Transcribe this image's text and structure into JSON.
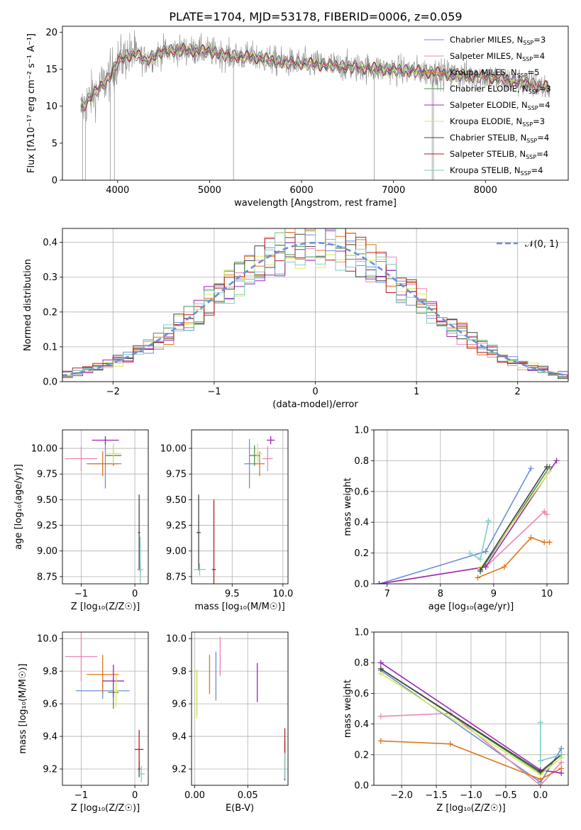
{
  "title": "PLATE=1704, MJD=53178, FIBERID=0006, z=0.059",
  "colors": {
    "Chabrier MILES": "#6a8fd8",
    "Salpeter MILES": "#e589b4",
    "Kroupa MILES": "#e0761a",
    "Chabrier ELODIE": "#4f8f4f",
    "Salpeter ELODIE": "#9b27b0",
    "Kroupa ELODIE": "#d7ec55",
    "Chabrier STELIB": "#444444",
    "Salpeter STELIB": "#b71c1c",
    "Kroupa STELIB": "#80cbc4",
    "data": "#888888",
    "grid": "#b0b0b0"
  },
  "chart_data": [
    {
      "type": "line",
      "panel": "spectrum",
      "xlabel": "wavelength [Angstrom, rest frame]",
      "ylabel": "Flux [fλ10⁻¹⁷ erg cm⁻² s⁻¹ A⁻¹]",
      "xlim": [
        3400,
        8900
      ],
      "ylim": [
        0,
        20.8
      ],
      "xticks": [
        4000,
        5000,
        6000,
        7000,
        8000
      ],
      "yticks": [
        0,
        5,
        10,
        15,
        20
      ],
      "legend_position": "top-right",
      "legend": [
        {
          "model": "Chabrier MILES",
          "n": "3"
        },
        {
          "model": "Salpeter MILES",
          "n": "4"
        },
        {
          "model": "Kroupa MILES",
          "n": "5"
        },
        {
          "model": "Chabrier ELODIE",
          "n": "3"
        },
        {
          "model": "Salpeter ELODIE",
          "n": "4"
        },
        {
          "model": "Kroupa ELODIE",
          "n": "3"
        },
        {
          "model": "Chabrier STELIB",
          "n": "4"
        },
        {
          "model": "Salpeter STELIB",
          "n": "4"
        },
        {
          "model": "Kroupa STELIB",
          "n": "4"
        }
      ],
      "continuum": [
        [
          3600,
          9.5
        ],
        [
          3700,
          11.2
        ],
        [
          3800,
          12.4
        ],
        [
          3900,
          13.8
        ],
        [
          4000,
          16.0
        ],
        [
          4100,
          16.8
        ],
        [
          4200,
          17.0
        ],
        [
          4300,
          16.2
        ],
        [
          4500,
          17.4
        ],
        [
          4700,
          17.6
        ],
        [
          5000,
          17.4
        ],
        [
          5200,
          16.8
        ],
        [
          5500,
          16.6
        ],
        [
          5800,
          15.9
        ],
        [
          6000,
          15.8
        ],
        [
          6500,
          15.3
        ],
        [
          6800,
          15.1
        ],
        [
          7000,
          14.9
        ],
        [
          7300,
          14.7
        ],
        [
          7600,
          14.3
        ],
        [
          8000,
          14.0
        ],
        [
          8400,
          13.2
        ],
        [
          8700,
          12.5
        ]
      ],
      "data_noise": 1.8
    },
    {
      "type": "line",
      "panel": "residuals",
      "xlabel": "(data-model)/error",
      "ylabel": "Normed distribution",
      "xlim": [
        -2.5,
        2.5
      ],
      "ylim": [
        0,
        0.44
      ],
      "xticks": [
        -2,
        -1,
        0,
        1,
        2
      ],
      "yticks": [
        0.0,
        0.1,
        0.2,
        0.3,
        0.4
      ],
      "legend": "𝒩(0, 1)",
      "legend_position": "top-right",
      "bin_width": 0.1
    },
    {
      "type": "scatter",
      "panel": "age-vs-Z",
      "xlabel": "Z [log₁₀(Z/Z☉)]",
      "ylabel": "age  [log₁₀(age/yr)]",
      "xlim": [
        -1.35,
        0.25
      ],
      "ylim": [
        8.68,
        10.18
      ],
      "xticks": [
        -1,
        0
      ],
      "yticks": [
        8.75,
        9.0,
        9.25,
        9.5,
        9.75,
        10.0
      ],
      "points": [
        {
          "model": "Chabrier MILES",
          "x": -0.55,
          "xerr": 0.3,
          "y": 9.85,
          "yerr": 0.24
        },
        {
          "model": "Salpeter MILES",
          "x": -1.0,
          "xerr": 0.3,
          "y": 9.9,
          "yerr": 0.12
        },
        {
          "model": "Kroupa MILES",
          "x": -0.6,
          "xerr": 0.3,
          "y": 9.85,
          "yerr": 0.12
        },
        {
          "model": "Chabrier ELODIE",
          "x": -0.4,
          "xerr": 0.15,
          "y": 9.93,
          "yerr": 0.1
        },
        {
          "model": "Salpeter ELODIE",
          "x": -0.55,
          "xerr": 0.25,
          "y": 10.08,
          "yerr": 0.04
        },
        {
          "model": "Kroupa ELODIE",
          "x": -0.4,
          "xerr": 0.15,
          "y": 9.95,
          "yerr": 0.1
        },
        {
          "model": "Chabrier STELIB",
          "x": 0.08,
          "xerr": 0.02,
          "y": 9.18,
          "yerr": 0.37
        },
        {
          "model": "Salpeter STELIB",
          "x": 0.1,
          "xerr": 0.02,
          "y": 8.82,
          "yerr": 0.04
        },
        {
          "model": "Kroupa STELIB",
          "x": 0.1,
          "xerr": 0.06,
          "y": 8.82,
          "yerr": 0.32
        }
      ]
    },
    {
      "type": "scatter",
      "panel": "age-vs-mass",
      "xlabel": "mass [log₁₀(M/M☉)]",
      "ylabel": "",
      "xlim": [
        9.1,
        10.05
      ],
      "ylim": [
        8.68,
        10.18
      ],
      "xticks": [
        9.5,
        10.0
      ],
      "yticks": [
        8.75,
        9.0,
        9.25,
        9.5,
        9.75,
        10.0
      ],
      "points": [
        {
          "model": "Chabrier MILES",
          "x": 9.67,
          "xerr": 0.05,
          "y": 9.85,
          "yerr": 0.24
        },
        {
          "model": "Salpeter MILES",
          "x": 9.85,
          "xerr": 0.05,
          "y": 9.9,
          "yerr": 0.12
        },
        {
          "model": "Kroupa MILES",
          "x": 9.77,
          "xerr": 0.05,
          "y": 9.85,
          "yerr": 0.12
        },
        {
          "model": "Chabrier ELODIE",
          "x": 9.72,
          "xerr": 0.05,
          "y": 9.93,
          "yerr": 0.1
        },
        {
          "model": "Salpeter ELODIE",
          "x": 9.88,
          "xerr": 0.04,
          "y": 10.08,
          "yerr": 0.04
        },
        {
          "model": "Kroupa ELODIE",
          "x": 9.75,
          "xerr": 0.05,
          "y": 9.95,
          "yerr": 0.1
        },
        {
          "model": "Chabrier STELIB",
          "x": 9.17,
          "xerr": 0.02,
          "y": 9.18,
          "yerr": 0.37
        },
        {
          "model": "Salpeter STELIB",
          "x": 9.32,
          "xerr": 0.02,
          "y": 8.82,
          "yerr": 0.68
        },
        {
          "model": "Kroupa STELIB",
          "x": 9.18,
          "xerr": 0.06,
          "y": 8.82,
          "yerr": 0.06
        }
      ]
    },
    {
      "type": "line",
      "panel": "mass-weight-vs-age",
      "xlabel": "age  [log₁₀(age/yr)]",
      "ylabel": "mass weight",
      "xlim": [
        6.75,
        10.4
      ],
      "ylim": [
        0,
        1.0
      ],
      "xticks": [
        7,
        8,
        9,
        10
      ],
      "yticks": [
        0.0,
        0.2,
        0.4,
        0.6,
        0.8,
        1.0
      ],
      "series": [
        {
          "model": "Chabrier MILES",
          "x": [
            6.85,
            8.85,
            9.7
          ],
          "y": [
            0.0,
            0.21,
            0.75
          ]
        },
        {
          "model": "Salpeter MILES",
          "x": [
            6.85,
            8.85,
            9.95,
            10.0
          ],
          "y": [
            0.0,
            0.11,
            0.47,
            0.45
          ]
        },
        {
          "model": "Kroupa MILES",
          "x": [
            8.7,
            9.2,
            9.7,
            9.95,
            10.05
          ],
          "y": [
            0.04,
            0.11,
            0.3,
            0.27,
            0.27
          ]
        },
        {
          "model": "Chabrier ELODIE",
          "x": [
            8.75,
            10.05
          ],
          "y": [
            0.08,
            0.76
          ]
        },
        {
          "model": "Salpeter ELODIE",
          "x": [
            6.85,
            8.85,
            10.18
          ],
          "y": [
            0.0,
            0.11,
            0.8
          ]
        },
        {
          "model": "Kroupa ELODIE",
          "x": [
            8.75,
            10.05
          ],
          "y": [
            0.1,
            0.73
          ]
        },
        {
          "model": "Chabrier STELIB",
          "x": [
            8.75,
            10.0
          ],
          "y": [
            0.09,
            0.76
          ]
        },
        {
          "model": "Salpeter STELIB",
          "x": [],
          "y": []
        },
        {
          "model": "Kroupa STELIB",
          "x": [
            8.55,
            8.75,
            8.9,
            8.9
          ],
          "y": [
            0.2,
            0.16,
            0.4,
            0.41
          ]
        }
      ]
    },
    {
      "type": "scatter",
      "panel": "mass-vs-Z",
      "xlabel": "Z [log₁₀(Z/Z☉)]",
      "ylabel": "mass [log₁₀(M/M☉)]",
      "xlim": [
        -1.35,
        0.25
      ],
      "ylim": [
        9.1,
        10.04
      ],
      "xticks": [
        -1,
        0
      ],
      "yticks": [
        9.2,
        9.4,
        9.6,
        9.8,
        10.0
      ],
      "points": [
        {
          "model": "Chabrier MILES",
          "x": -0.6,
          "xerr": 0.5,
          "y": 9.68,
          "yerr": 0.05
        },
        {
          "model": "Salpeter MILES",
          "x": -1.0,
          "xerr": 0.3,
          "y": 9.89,
          "yerr": 0.15
        },
        {
          "model": "Kroupa MILES",
          "x": -0.6,
          "xerr": 0.3,
          "y": 9.78,
          "yerr": 0.12
        },
        {
          "model": "Chabrier ELODIE",
          "x": -0.4,
          "xerr": 0.1,
          "y": 9.67,
          "yerr": 0.1
        },
        {
          "model": "Salpeter ELODIE",
          "x": -0.4,
          "xerr": 0.2,
          "y": 9.74,
          "yerr": 0.1
        },
        {
          "model": "Kroupa ELODIE",
          "x": -0.35,
          "xerr": 0.05,
          "y": 9.68,
          "yerr": 0.1
        },
        {
          "model": "Chabrier STELIB",
          "x": 0.08,
          "xerr": 0.02,
          "y": 9.2,
          "yerr": 0.05
        },
        {
          "model": "Salpeter STELIB",
          "x": 0.08,
          "xerr": 0.08,
          "y": 9.32,
          "yerr": 0.12
        },
        {
          "model": "Kroupa STELIB",
          "x": 0.12,
          "xerr": 0.06,
          "y": 9.17,
          "yerr": 0.05
        }
      ]
    },
    {
      "type": "scatter",
      "panel": "mass-vs-EBV",
      "xlabel": "E(B-V)",
      "ylabel": "",
      "xlim": [
        -0.003,
        0.088
      ],
      "ylim": [
        9.1,
        10.04
      ],
      "xticks": [
        0.0,
        0.05
      ],
      "xticklabels": [
        "0.00",
        "0.05"
      ],
      "yticks": [
        9.2,
        9.4,
        9.6,
        9.8,
        10.0
      ],
      "points": [
        {
          "model": "Chabrier MILES",
          "x": 0.02,
          "xerr": 0.0,
          "y": 9.77,
          "yerr": 0.15
        },
        {
          "model": "Salpeter MILES",
          "x": 0.024,
          "xerr": 0.0,
          "y": 9.89,
          "yerr": 0.12
        },
        {
          "model": "Kroupa MILES",
          "x": 0.014,
          "xerr": 0.0,
          "y": 9.78,
          "yerr": 0.12
        },
        {
          "model": "Chabrier ELODIE",
          "x": 0.002,
          "xerr": 0.0,
          "y": 9.67,
          "yerr": 0.14
        },
        {
          "model": "Salpeter ELODIE",
          "x": 0.059,
          "xerr": 0.0,
          "y": 9.73,
          "yerr": 0.12
        },
        {
          "model": "Kroupa ELODIE",
          "x": 0.002,
          "xerr": 0.0,
          "y": 9.66,
          "yerr": 0.15
        },
        {
          "model": "Chabrier STELIB",
          "x": 0.085,
          "xerr": 0.0,
          "y": 9.25,
          "yerr": 0.12
        },
        {
          "model": "Salpeter STELIB",
          "x": 0.085,
          "xerr": 0.0,
          "y": 9.37,
          "yerr": 0.08
        },
        {
          "model": "Kroupa STELIB",
          "x": 0.085,
          "xerr": 0.0,
          "y": 9.22,
          "yerr": 0.08
        }
      ]
    },
    {
      "type": "line",
      "panel": "mass-weight-vs-Z",
      "xlabel": "Z [log₁₀(Z/Z☉)]",
      "ylabel": "mass weight",
      "xlim": [
        -2.4,
        0.4
      ],
      "ylim": [
        0,
        1.0
      ],
      "xticks": [
        -2.0,
        -1.5,
        -1.0,
        -0.5,
        0.0
      ],
      "xticklabels": [
        "−2.0",
        "−1.5",
        "−1.0",
        "−0.5",
        "0.0"
      ],
      "yticks": [
        0.0,
        0.2,
        0.4,
        0.6,
        0.8,
        1.0
      ],
      "series": [
        {
          "model": "Chabrier MILES",
          "x": [
            -2.3,
            0.0,
            0.3
          ],
          "y": [
            0.75,
            0.02,
            0.24
          ]
        },
        {
          "model": "Salpeter MILES",
          "x": [
            -2.3,
            -1.3,
            0.0,
            0.3
          ],
          "y": [
            0.45,
            0.47,
            0.0,
            0.15
          ]
        },
        {
          "model": "Kroupa MILES",
          "x": [
            -2.3,
            -1.3,
            0.0,
            0.3
          ],
          "y": [
            0.29,
            0.27,
            0.04,
            0.11
          ]
        },
        {
          "model": "Chabrier ELODIE",
          "x": [
            -2.3,
            0.0,
            0.3
          ],
          "y": [
            0.76,
            0.08,
            0.2
          ]
        },
        {
          "model": "Salpeter ELODIE",
          "x": [
            -2.3,
            0.0,
            0.3
          ],
          "y": [
            0.8,
            0.1,
            0.08
          ]
        },
        {
          "model": "Kroupa ELODIE",
          "x": [
            -2.3,
            0.0,
            0.3
          ],
          "y": [
            0.73,
            0.07,
            0.18
          ]
        },
        {
          "model": "Chabrier STELIB",
          "x": [
            -2.3,
            0.0,
            0.3
          ],
          "y": [
            0.76,
            0.09,
            0.2
          ]
        },
        {
          "model": "Salpeter STELIB",
          "x": [],
          "y": []
        },
        {
          "model": "Kroupa STELIB",
          "x": [
            0.0,
            0.0,
            0.3
          ],
          "y": [
            0.41,
            0.16,
            0.2
          ]
        }
      ]
    }
  ]
}
